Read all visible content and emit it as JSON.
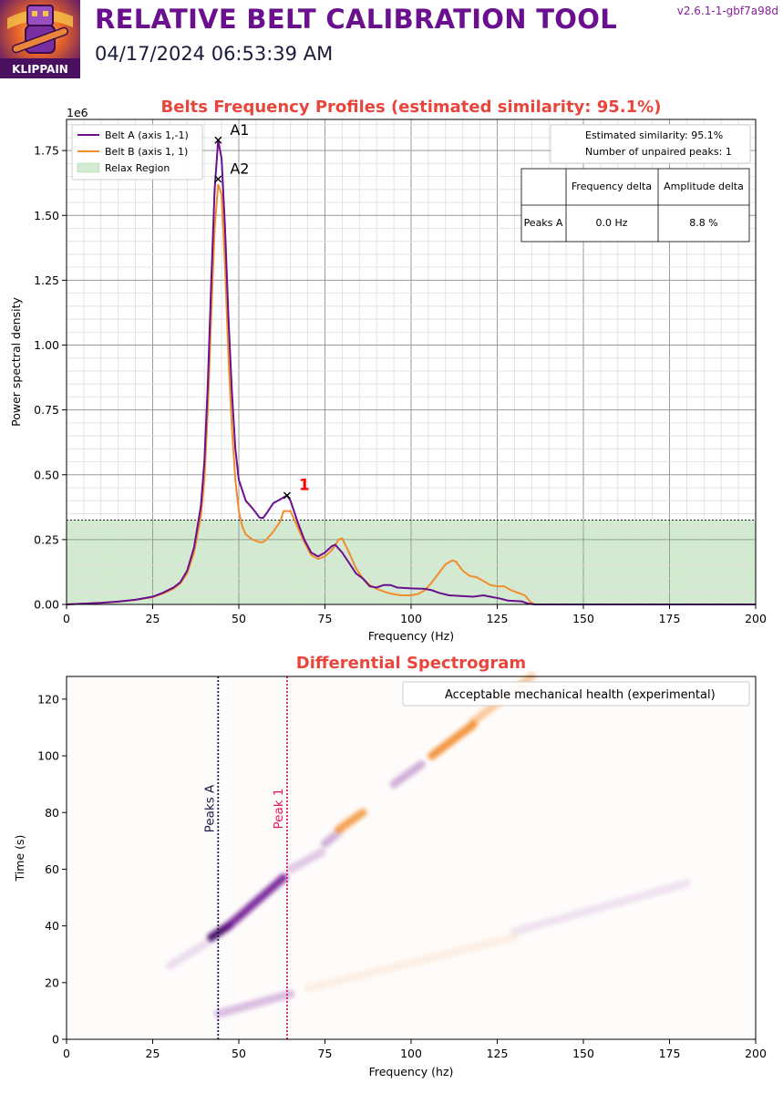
{
  "header": {
    "title": "RELATIVE BELT CALIBRATION TOOL",
    "timestamp": "04/17/2024 06:53:39 AM",
    "version": "v2.6.1-1-gbf7a98d",
    "logo_text": "KLIPPAIN"
  },
  "colors": {
    "belt_a": "#6a0f8e",
    "belt_b": "#f28d2c",
    "relax_fill": "#d2ead0",
    "title": "#e8463c",
    "peaks_a_line": "#1a1a4a",
    "peak1_line": "#e8155a"
  },
  "chart_data": [
    {
      "type": "line",
      "title": "Belts Frequency Profiles (estimated similarity: 95.1%)",
      "xlabel": "Frequency (Hz)",
      "ylabel": "Power spectral density",
      "y_multiplier": "1e6",
      "xlim": [
        0,
        200
      ],
      "ylim": [
        0,
        1.87
      ],
      "x_ticks": [
        0,
        25,
        50,
        75,
        100,
        125,
        150,
        175,
        200
      ],
      "y_ticks": [
        0,
        0.25,
        0.5,
        0.75,
        1.0,
        1.25,
        1.5,
        1.75
      ],
      "y_tick_labels": [
        "0.00",
        "0.25",
        "0.50",
        "0.75",
        "1.00",
        "1.25",
        "1.50",
        "1.75"
      ],
      "grid": true,
      "legend_position": "top-left",
      "relax_region_max": 0.325,
      "series": [
        {
          "name": "Belt A (axis 1,-1)",
          "color": "#6a0f8e",
          "points": [
            [
              0,
              0
            ],
            [
              5,
              0.003
            ],
            [
              10,
              0.006
            ],
            [
              15,
              0.011
            ],
            [
              20,
              0.018
            ],
            [
              25,
              0.03
            ],
            [
              28,
              0.045
            ],
            [
              31,
              0.065
            ],
            [
              33,
              0.085
            ],
            [
              35,
              0.13
            ],
            [
              37,
              0.22
            ],
            [
              39,
              0.38
            ],
            [
              40,
              0.55
            ],
            [
              41,
              0.85
            ],
            [
              42,
              1.25
            ],
            [
              43,
              1.6
            ],
            [
              44,
              1.79
            ],
            [
              45,
              1.72
            ],
            [
              46,
              1.45
            ],
            [
              47,
              1.1
            ],
            [
              48,
              0.82
            ],
            [
              49,
              0.6
            ],
            [
              50,
              0.48
            ],
            [
              51,
              0.44
            ],
            [
              52,
              0.4
            ],
            [
              54,
              0.37
            ],
            [
              56,
              0.335
            ],
            [
              57,
              0.333
            ],
            [
              58,
              0.35
            ],
            [
              60,
              0.39
            ],
            [
              62,
              0.405
            ],
            [
              64,
              0.42
            ],
            [
              65,
              0.4
            ],
            [
              67,
              0.32
            ],
            [
              69,
              0.25
            ],
            [
              71,
              0.2
            ],
            [
              73,
              0.185
            ],
            [
              75,
              0.2
            ],
            [
              77,
              0.225
            ],
            [
              78,
              0.23
            ],
            [
              80,
              0.2
            ],
            [
              82,
              0.16
            ],
            [
              84,
              0.12
            ],
            [
              86,
              0.1
            ],
            [
              88,
              0.07
            ],
            [
              90,
              0.065
            ],
            [
              92,
              0.075
            ],
            [
              94,
              0.075
            ],
            [
              96,
              0.065
            ],
            [
              100,
              0.062
            ],
            [
              104,
              0.06
            ],
            [
              106,
              0.055
            ],
            [
              108,
              0.045
            ],
            [
              111,
              0.035
            ],
            [
              115,
              0.032
            ],
            [
              118,
              0.03
            ],
            [
              121,
              0.035
            ],
            [
              123,
              0.03
            ],
            [
              126,
              0.022
            ],
            [
              128,
              0.015
            ],
            [
              132,
              0.012
            ],
            [
              134,
              0.003
            ],
            [
              136,
              0
            ],
            [
              200,
              0
            ]
          ]
        },
        {
          "name": "Belt B (axis 1, 1)",
          "color": "#f28d2c",
          "points": [
            [
              0,
              0
            ],
            [
              5,
              0.003
            ],
            [
              10,
              0.006
            ],
            [
              15,
              0.011
            ],
            [
              20,
              0.018
            ],
            [
              25,
              0.028
            ],
            [
              28,
              0.042
            ],
            [
              31,
              0.06
            ],
            [
              33,
              0.08
            ],
            [
              35,
              0.12
            ],
            [
              37,
              0.2
            ],
            [
              39,
              0.34
            ],
            [
              40,
              0.48
            ],
            [
              41,
              0.75
            ],
            [
              42,
              1.12
            ],
            [
              43,
              1.45
            ],
            [
              44,
              1.62
            ],
            [
              45,
              1.58
            ],
            [
              46,
              1.3
            ],
            [
              47,
              0.95
            ],
            [
              48,
              0.68
            ],
            [
              49,
              0.48
            ],
            [
              50,
              0.36
            ],
            [
              51,
              0.3
            ],
            [
              52,
              0.27
            ],
            [
              54,
              0.25
            ],
            [
              56,
              0.24
            ],
            [
              57,
              0.24
            ],
            [
              58,
              0.25
            ],
            [
              60,
              0.28
            ],
            [
              62,
              0.32
            ],
            [
              63,
              0.36
            ],
            [
              65,
              0.36
            ],
            [
              67,
              0.3
            ],
            [
              69,
              0.24
            ],
            [
              71,
              0.19
            ],
            [
              73,
              0.175
            ],
            [
              75,
              0.185
            ],
            [
              77,
              0.21
            ],
            [
              79,
              0.25
            ],
            [
              80,
              0.255
            ],
            [
              82,
              0.2
            ],
            [
              84,
              0.14
            ],
            [
              86,
              0.1
            ],
            [
              88,
              0.075
            ],
            [
              90,
              0.06
            ],
            [
              92,
              0.05
            ],
            [
              94,
              0.042
            ],
            [
              97,
              0.035
            ],
            [
              100,
              0.035
            ],
            [
              102,
              0.04
            ],
            [
              104,
              0.055
            ],
            [
              106,
              0.085
            ],
            [
              108,
              0.12
            ],
            [
              110,
              0.155
            ],
            [
              112,
              0.17
            ],
            [
              113,
              0.165
            ],
            [
              115,
              0.13
            ],
            [
              117,
              0.11
            ],
            [
              119,
              0.105
            ],
            [
              121,
              0.09
            ],
            [
              123,
              0.075
            ],
            [
              125,
              0.07
            ],
            [
              127,
              0.07
            ],
            [
              129,
              0.055
            ],
            [
              131,
              0.045
            ],
            [
              133,
              0.035
            ],
            [
              135,
              0.005
            ],
            [
              136,
              0
            ],
            [
              200,
              0
            ]
          ]
        },
        {
          "name": "Relax Region",
          "color": "#d2ead0"
        }
      ],
      "peak_markers": [
        {
          "label": "A1",
          "x": 44,
          "y": 1.79,
          "series": "Belt A (axis 1,-1)"
        },
        {
          "label": "A2",
          "x": 44,
          "y": 1.64,
          "series": "Belt B (axis 1, 1)"
        },
        {
          "label": "1",
          "x": 64,
          "y": 0.42,
          "series": "Belt A (axis 1,-1)"
        }
      ],
      "info_box": [
        "Estimated similarity: 95.1%",
        "Number of unpaired peaks: 1"
      ],
      "table": {
        "headers": [
          "",
          "Frequency delta",
          "Amplitude delta"
        ],
        "rows": [
          [
            "Peaks A",
            "0.0 Hz",
            "8.8 %"
          ]
        ]
      }
    },
    {
      "type": "heatmap",
      "title": "Differential Spectrogram",
      "xlabel": "Frequency (hz)",
      "ylabel": "Time (s)",
      "xlim": [
        0,
        200
      ],
      "ylim": [
        0,
        128
      ],
      "x_ticks": [
        0,
        25,
        50,
        75,
        100,
        125,
        150,
        175,
        200
      ],
      "y_ticks": [
        0,
        20,
        40,
        60,
        80,
        100,
        120
      ],
      "legend_text": "Acceptable mechanical health (experimental)",
      "legend_position": "top-right",
      "vertical_lines": [
        {
          "label": "Peaks A",
          "x": 44,
          "color": "#1a1a4a"
        },
        {
          "label": "Peak 1",
          "x": 64,
          "color": "#e8155a"
        }
      ],
      "streaks": [
        {
          "color": "#6a0f8e",
          "opacity": 0.12,
          "x1": 30,
          "t1": 26,
          "x2": 42,
          "t2": 35
        },
        {
          "color": "#4a0a6a",
          "opacity": 0.95,
          "x1": 42,
          "t1": 36,
          "x2": 47,
          "t2": 40
        },
        {
          "color": "#6a0f8e",
          "opacity": 0.85,
          "x1": 47,
          "t1": 40,
          "x2": 63,
          "t2": 57
        },
        {
          "color": "#6a0f8e",
          "opacity": 0.2,
          "x1": 65,
          "t1": 60,
          "x2": 74,
          "t2": 66
        },
        {
          "color": "#6a0f8e",
          "opacity": 0.3,
          "x1": 75,
          "t1": 69,
          "x2": 79,
          "t2": 73
        },
        {
          "color": "#f28d2c",
          "opacity": 0.8,
          "x1": 79,
          "t1": 74,
          "x2": 86,
          "t2": 80
        },
        {
          "color": "#6a0f8e",
          "opacity": 0.3,
          "x1": 95,
          "t1": 90,
          "x2": 103,
          "t2": 97
        },
        {
          "color": "#f28d2c",
          "opacity": 0.9,
          "x1": 106,
          "t1": 100,
          "x2": 118,
          "t2": 111
        },
        {
          "color": "#f28d2c",
          "opacity": 0.45,
          "x1": 118,
          "t1": 112,
          "x2": 135,
          "t2": 128
        },
        {
          "color": "#6a0f8e",
          "opacity": 0.25,
          "x1": 44,
          "t1": 9,
          "x2": 65,
          "t2": 16
        },
        {
          "color": "#f28d2c",
          "opacity": 0.12,
          "x1": 70,
          "t1": 18,
          "x2": 130,
          "t2": 36
        },
        {
          "color": "#6a0f8e",
          "opacity": 0.1,
          "x1": 130,
          "t1": 38,
          "x2": 180,
          "t2": 55
        }
      ]
    }
  ]
}
